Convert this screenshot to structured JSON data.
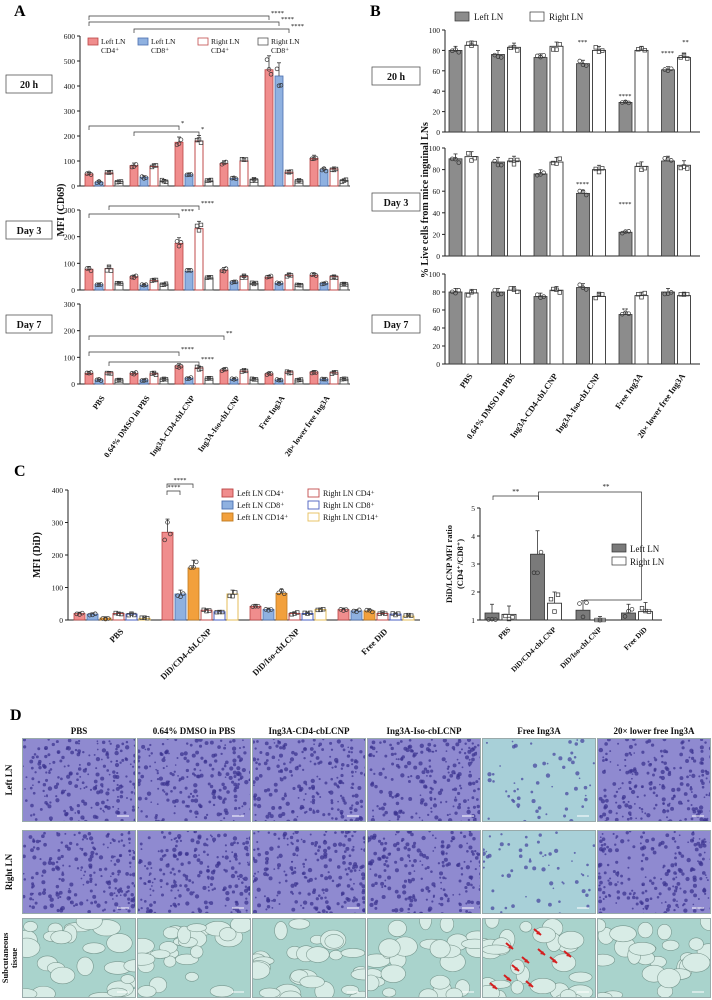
{
  "panel_letters": {
    "a": "A",
    "b": "B",
    "c": "C",
    "d": "D"
  },
  "timepoints": [
    "20 h",
    "Day 3",
    "Day 7"
  ],
  "groups_ab": [
    "PBS",
    "0.64% DMSO in PBS",
    "Ing3A-CD4-cbLCNP",
    "Ing3A-Iso-cbLCNP",
    "Free Ing3A",
    "20× lower free Ing3A"
  ],
  "colors": {
    "left_cd4": "#f08d8d",
    "left_cd8": "#8fb1e0",
    "right_cd4_edge": "#c24b4b",
    "right_cd8_edge": "#555555",
    "left_cd14": "#f2a03c",
    "right_cd8_edge_c": "#4a5fc0",
    "right_cd14_edge": "#e6be5a",
    "left_ln_gray": "#8c8c8c",
    "left_ln_dark": "#7a7a7a",
    "right_ln_white": "#ffffff",
    "arrow_red": "#d42020",
    "he_purple": "#6a63b3",
    "he_teal": "#8fc0bb"
  },
  "panel_a": {
    "y_label": "MFI (CD69)",
    "legend": [
      "Left LN CD4⁺",
      "Left LN CD8⁺",
      "Right LN CD4⁺",
      "Right LN CD8⁺"
    ],
    "significance": {
      "20h": [
        "****",
        "****",
        "****",
        "*",
        "*"
      ],
      "day3": [
        "****",
        "****"
      ],
      "day7": [
        "**",
        "****",
        "****"
      ]
    }
  },
  "panel_b": {
    "y_label": "% Live cells from mice inguinal LNs",
    "legend": [
      "Left LN",
      "Right LN"
    ],
    "significance": {
      "20h": [
        "***",
        "****",
        "****",
        "**"
      ],
      "day3": [
        "****",
        "****"
      ],
      "day7": [
        "**"
      ]
    }
  },
  "panel_c": {
    "y_label": "MFI (DiD)",
    "legend": [
      "Left LN CD4⁺",
      "Right LN CD4⁺",
      "Left LN CD8⁺",
      "Right LN CD8⁺",
      "Left LN CD14⁺",
      "Right LN CD14⁺"
    ],
    "groups": [
      "PBS",
      "DiD/CD4-cbLCNP",
      "DiD/Iso-cbLCNP",
      "Free DiD"
    ],
    "significance": [
      "****",
      "****"
    ],
    "ratio": {
      "y_label_1": "DiD/LCNP MFI ratio",
      "y_label_2": "(CD4⁺/CD8⁺)",
      "legend": [
        "Left LN",
        "Right LN"
      ],
      "groups": [
        "PBS",
        "DiD/CD4-cbLCNP",
        "DiD/Iso-cbLCNP",
        "Free DiD"
      ],
      "significance": [
        "**",
        "**"
      ]
    }
  },
  "panel_d": {
    "columns": [
      "PBS",
      "0.64% DMSO in PBS",
      "Ing3A-CD4-cbLCNP",
      "Ing3A-Iso-cbLCNP",
      "Free Ing3A",
      "20× lower free Ing3A"
    ],
    "rows": [
      "Left LN",
      "Right LN",
      "Subcutaneous tissue"
    ]
  },
  "chart_data": [
    {
      "type": "bar",
      "panel": "A-20h",
      "categories": [
        "PBS",
        "0.64% DMSO in PBS",
        "Ing3A-CD4-cbLCNP",
        "Ing3A-Iso-cbLCNP",
        "Free Ing3A",
        "20× lower free Ing3A"
      ],
      "ylim": [
        0,
        600
      ],
      "yticks": [
        0,
        100,
        200,
        300,
        400,
        500,
        600
      ],
      "series": [
        {
          "name": "Left LN CD4⁺",
          "values": [
            48,
            82,
            175,
            90,
            465,
            110
          ]
        },
        {
          "name": "Left LN CD8⁺",
          "values": [
            15,
            35,
            45,
            30,
            440,
            65
          ]
        },
        {
          "name": "Right LN CD4⁺",
          "values": [
            52,
            78,
            180,
            100,
            55,
            68
          ]
        },
        {
          "name": "Right LN CD8⁺",
          "values": [
            18,
            20,
            20,
            25,
            20,
            22
          ]
        }
      ]
    },
    {
      "type": "bar",
      "panel": "A-Day3",
      "categories": [
        "PBS",
        "0.64% DMSO in PBS",
        "Ing3A-CD4-cbLCNP",
        "Ing3A-Iso-cbLCNP",
        "Free Ing3A",
        "20× lower free Ing3A"
      ],
      "ylim": [
        0,
        300
      ],
      "yticks": [
        0,
        100,
        200,
        300
      ],
      "series": [
        {
          "name": "Left LN CD4⁺",
          "values": [
            78,
            50,
            175,
            75,
            48,
            55
          ]
        },
        {
          "name": "Left LN CD8⁺",
          "values": [
            20,
            18,
            70,
            30,
            25,
            25
          ]
        },
        {
          "name": "Right LN CD4⁺",
          "values": [
            80,
            35,
            230,
            50,
            55,
            50
          ]
        },
        {
          "name": "Right LN CD8⁺",
          "values": [
            25,
            22,
            45,
            25,
            20,
            22
          ]
        }
      ]
    },
    {
      "type": "bar",
      "panel": "A-Day7",
      "categories": [
        "PBS",
        "0.64% DMSO in PBS",
        "Ing3A-CD4-cbLCNP",
        "Ing3A-Iso-cbLCNP",
        "Free Ing3A",
        "20× lower free Ing3A"
      ],
      "ylim": [
        0,
        300
      ],
      "yticks": [
        0,
        100,
        200,
        300
      ],
      "series": [
        {
          "name": "Left LN CD4⁺",
          "values": [
            40,
            40,
            68,
            52,
            38,
            45
          ]
        },
        {
          "name": "Left LN CD8⁺",
          "values": [
            15,
            15,
            22,
            18,
            15,
            18
          ]
        },
        {
          "name": "Right LN CD4⁺",
          "values": [
            42,
            38,
            60,
            48,
            45,
            42
          ]
        },
        {
          "name": "Right LN CD8⁺",
          "values": [
            15,
            18,
            20,
            18,
            15,
            18
          ]
        }
      ]
    },
    {
      "type": "bar",
      "panel": "B-20h",
      "categories": [
        "PBS",
        "0.64% DMSO in PBS",
        "Ing3A-CD4-cbLCNP",
        "Ing3A-Iso-cbLCNP",
        "Free Ing3A",
        "20× lower free Ing3A"
      ],
      "ylim": [
        0,
        100
      ],
      "yticks": [
        0,
        20,
        40,
        60,
        80,
        100
      ],
      "series": [
        {
          "name": "Left LN",
          "values": [
            80,
            76,
            73,
            67,
            29,
            61
          ]
        },
        {
          "name": "Right LN",
          "values": [
            85,
            83,
            84,
            80,
            80,
            73
          ]
        }
      ]
    },
    {
      "type": "bar",
      "panel": "B-Day3",
      "categories": [
        "PBS",
        "0.64% DMSO in PBS",
        "Ing3A-CD4-cbLCNP",
        "Ing3A-Iso-cbLCNP",
        "Free Ing3A",
        "20× lower free Ing3A"
      ],
      "ylim": [
        0,
        100
      ],
      "yticks": [
        0,
        20,
        40,
        60,
        80,
        100
      ],
      "series": [
        {
          "name": "Left LN",
          "values": [
            90,
            87,
            76,
            58,
            22,
            88
          ]
        },
        {
          "name": "Right LN",
          "values": [
            92,
            88,
            87,
            80,
            83,
            84
          ]
        }
      ]
    },
    {
      "type": "bar",
      "panel": "B-Day7",
      "categories": [
        "PBS",
        "0.64% DMSO in PBS",
        "Ing3A-CD4-cbLCNP",
        "Ing3A-Iso-cbLCNP",
        "Free Ing3A",
        "20× lower free Ing3A"
      ],
      "ylim": [
        0,
        100
      ],
      "yticks": [
        0,
        20,
        40,
        60,
        80,
        100
      ],
      "series": [
        {
          "name": "Left LN",
          "values": [
            80,
            80,
            75,
            85,
            55,
            80
          ]
        },
        {
          "name": "Right LN",
          "values": [
            79,
            82,
            82,
            75,
            76,
            76
          ]
        }
      ]
    },
    {
      "type": "bar",
      "panel": "C-MFI",
      "categories": [
        "PBS",
        "DiD/CD4-cbLCNP",
        "DiD/Iso-cbLCNP",
        "Free DiD"
      ],
      "ylim": [
        0,
        400
      ],
      "yticks": [
        0,
        100,
        200,
        300,
        400
      ],
      "series": [
        {
          "name": "Left LN CD4⁺",
          "values": [
            20,
            270,
            42,
            32
          ]
        },
        {
          "name": "Left LN CD8⁺",
          "values": [
            18,
            80,
            32,
            28
          ]
        },
        {
          "name": "Left LN CD14⁺",
          "values": [
            6,
            160,
            82,
            28
          ]
        },
        {
          "name": "Right LN CD4⁺",
          "values": [
            20,
            30,
            20,
            20
          ]
        },
        {
          "name": "Right LN CD8⁺",
          "values": [
            18,
            25,
            20,
            18
          ]
        },
        {
          "name": "Right LN CD14⁺",
          "values": [
            5,
            80,
            32,
            12
          ]
        }
      ]
    },
    {
      "type": "bar",
      "panel": "C-ratio",
      "categories": [
        "PBS",
        "DiD/CD4-cbLCNP",
        "DiD/Iso-cbLCNP",
        "Free DiD"
      ],
      "ylim": [
        1,
        5
      ],
      "yticks": [
        1,
        2,
        3,
        4,
        5
      ],
      "series": [
        {
          "name": "Left LN",
          "values": [
            1.25,
            3.35,
            1.35,
            1.25
          ]
        },
        {
          "name": "Right LN",
          "values": [
            1.2,
            1.6,
            0.9,
            1.3
          ]
        }
      ]
    }
  ]
}
